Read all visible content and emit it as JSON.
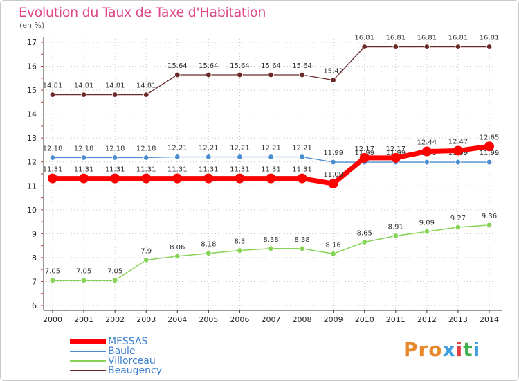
{
  "header": {
    "title": "Evolution du Taux de Taxe d'Habitation",
    "unit": "(en %)"
  },
  "logo": {
    "text": "Proxiti",
    "colors": [
      "#e8882a",
      "#e8882a",
      "#e8882a",
      "#3f9de0",
      "#e04040",
      "#3fb04a",
      "#3f9de0"
    ]
  },
  "chart_data": {
    "type": "line",
    "x": [
      2000,
      2001,
      2002,
      2003,
      2004,
      2005,
      2006,
      2007,
      2008,
      2009,
      2010,
      2011,
      2012,
      2013,
      2014
    ],
    "yticks": [
      6,
      7,
      8,
      9,
      10,
      11,
      12,
      13,
      14,
      15,
      16,
      17
    ],
    "ylim": [
      6,
      17
    ],
    "grid": true,
    "legend_position": "bottom-left",
    "series": [
      {
        "name": "Beaugency",
        "color": "#6b2a2a",
        "width": 1.3,
        "marker": 3.8,
        "values": [
          14.81,
          14.81,
          14.81,
          14.81,
          15.64,
          15.64,
          15.64,
          15.64,
          15.64,
          15.42,
          16.81,
          16.81,
          16.81,
          16.81,
          16.81
        ],
        "labels": [
          "14.81",
          "14.81",
          "14.81",
          "14.81",
          "15.64",
          "15.64",
          "15.64",
          "15.64",
          "15.64",
          "15.42",
          "16.81",
          "16.81",
          "16.81",
          "16.81",
          "16.81"
        ]
      },
      {
        "name": "Baule",
        "color": "#4a8ed0",
        "width": 1.3,
        "marker": 3.8,
        "values": [
          12.18,
          12.18,
          12.18,
          12.18,
          12.21,
          12.21,
          12.21,
          12.21,
          12.21,
          11.99,
          11.99,
          11.99,
          11.99,
          11.99,
          11.99
        ],
        "labels": [
          "12.18",
          "12.18",
          "12.18",
          "12.18",
          "12.21",
          "12.21",
          "12.21",
          "12.21",
          "12.21",
          "11.99",
          "11.99",
          "11.99",
          "11.99",
          "11.99",
          "11.99"
        ]
      },
      {
        "name": "Villorceau",
        "color": "#86d356",
        "width": 1.5,
        "marker": 3.8,
        "values": [
          7.05,
          7.05,
          7.05,
          7.9,
          8.06,
          8.18,
          8.3,
          8.38,
          8.38,
          8.16,
          8.65,
          8.91,
          9.09,
          9.27,
          9.36
        ],
        "labels": [
          "7.05",
          "7.05",
          "7.05",
          "7.9",
          "8.06",
          "8.18",
          "8.3",
          "8.38",
          "8.38",
          "8.16",
          "8.65",
          "8.91",
          "9.09",
          "9.27",
          "9.36"
        ]
      },
      {
        "name": "MESSAS",
        "color": "#ff0000",
        "width": 7,
        "marker": 7,
        "values": [
          11.31,
          11.31,
          11.31,
          11.31,
          11.31,
          11.31,
          11.31,
          11.31,
          11.31,
          11.09,
          12.17,
          12.17,
          12.44,
          12.47,
          12.65
        ],
        "labels": [
          "11.31",
          "11.31",
          "11.31",
          "11.31",
          "11.31",
          "11.31",
          "11.31",
          "11.31",
          "11.31",
          "11.09",
          "12.17",
          "12.17",
          "12.44",
          "12.47",
          "12.65"
        ]
      }
    ],
    "legend_order": [
      "MESSAS",
      "Baule",
      "Villorceau",
      "Beaugency"
    ]
  }
}
